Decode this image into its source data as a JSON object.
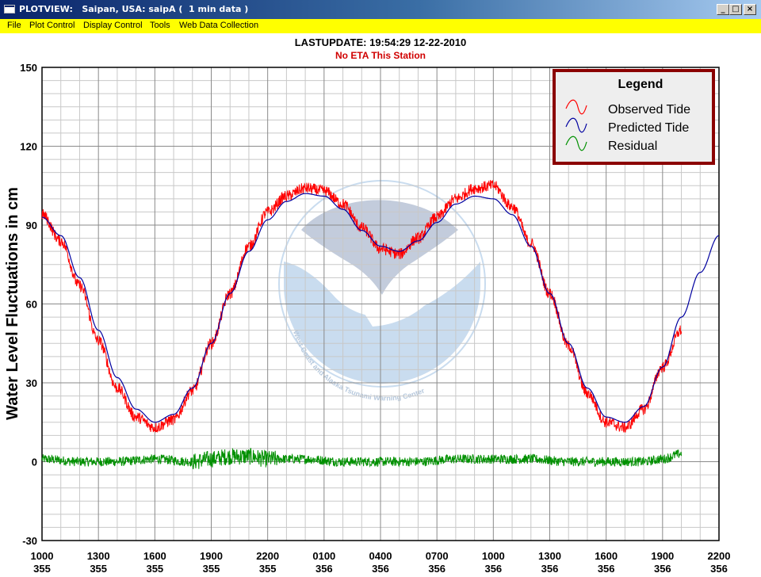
{
  "window": {
    "title": "PLOTVIEW:   Saipan, USA: saipA (  1 min data )",
    "buttons": [
      "_",
      "□",
      "×"
    ]
  },
  "menu": [
    "File",
    "Plot Control",
    "Display Control",
    "Tools",
    "Web Data Collection"
  ],
  "header": {
    "last_update": "LASTUPDATE: 19:54:29  12-22-2010",
    "eta": "No ETA This Station"
  },
  "watermark_text": "West Coast and Alaska Tsunami Warning Center",
  "chart_data": {
    "type": "line",
    "ylabel": "Water Level Fluctuations in cm",
    "ylim": [
      -30,
      150
    ],
    "yticks": [
      -30,
      0,
      30,
      60,
      90,
      120,
      150
    ],
    "x_ticks": [
      {
        "time": "1000",
        "day": "355"
      },
      {
        "time": "1300",
        "day": "355"
      },
      {
        "time": "1600",
        "day": "355"
      },
      {
        "time": "1900",
        "day": "355"
      },
      {
        "time": "2200",
        "day": "355"
      },
      {
        "time": "0100",
        "day": "356"
      },
      {
        "time": "0400",
        "day": "356"
      },
      {
        "time": "0700",
        "day": "356"
      },
      {
        "time": "1000",
        "day": "356"
      },
      {
        "time": "1300",
        "day": "356"
      },
      {
        "time": "1600",
        "day": "356"
      },
      {
        "time": "1900",
        "day": "356"
      },
      {
        "time": "2200",
        "day": "356"
      }
    ],
    "grid": true,
    "legend": {
      "title": "Legend",
      "placement": "top-right",
      "entries": [
        {
          "name": "Observed Tide",
          "color": "#ff0000"
        },
        {
          "name": "Predicted Tide",
          "color": "#0000a0"
        },
        {
          "name": "Residual",
          "color": "#009000"
        }
      ]
    },
    "series": [
      {
        "name": "Predicted Tide",
        "color": "#0000a0",
        "x_unit": "hours since 1000 day 355",
        "points": [
          [
            0,
            93
          ],
          [
            1,
            86
          ],
          [
            2,
            70
          ],
          [
            3,
            50
          ],
          [
            4,
            32
          ],
          [
            5,
            20
          ],
          [
            6,
            15
          ],
          [
            7,
            18
          ],
          [
            8,
            28
          ],
          [
            9,
            45
          ],
          [
            10,
            64
          ],
          [
            11,
            80
          ],
          [
            12,
            92
          ],
          [
            13,
            99
          ],
          [
            14,
            102
          ],
          [
            15,
            101
          ],
          [
            16,
            96
          ],
          [
            17,
            88
          ],
          [
            18,
            82
          ],
          [
            19,
            80
          ],
          [
            20,
            84
          ],
          [
            21,
            91
          ],
          [
            22,
            98
          ],
          [
            23,
            101
          ],
          [
            24,
            100
          ],
          [
            25,
            94
          ],
          [
            26,
            82
          ],
          [
            27,
            64
          ],
          [
            28,
            45
          ],
          [
            29,
            28
          ],
          [
            30,
            17
          ],
          [
            31,
            15
          ],
          [
            32,
            21
          ],
          [
            33,
            36
          ],
          [
            34,
            55
          ],
          [
            35,
            72
          ],
          [
            36,
            86
          ]
        ]
      },
      {
        "name": "Observed Tide",
        "color": "#ff0000",
        "points": [
          [
            0,
            94
          ],
          [
            1,
            84
          ],
          [
            2,
            67
          ],
          [
            3,
            46
          ],
          [
            4,
            28
          ],
          [
            5,
            17
          ],
          [
            6,
            13
          ],
          [
            7,
            16
          ],
          [
            8,
            27
          ],
          [
            9,
            45
          ],
          [
            10,
            64
          ],
          [
            11,
            82
          ],
          [
            12,
            95
          ],
          [
            13,
            101
          ],
          [
            14,
            104
          ],
          [
            15,
            103
          ],
          [
            16,
            98
          ],
          [
            17,
            89
          ],
          [
            18,
            81
          ],
          [
            19,
            79
          ],
          [
            20,
            85
          ],
          [
            21,
            93
          ],
          [
            22,
            100
          ],
          [
            23,
            104
          ],
          [
            24,
            105
          ],
          [
            25,
            97
          ],
          [
            26,
            83
          ],
          [
            27,
            64
          ],
          [
            28,
            44
          ],
          [
            29,
            26
          ],
          [
            30,
            15
          ],
          [
            31,
            13
          ],
          [
            32,
            20
          ],
          [
            33,
            36
          ],
          [
            34,
            50
          ]
        ]
      },
      {
        "name": "Residual",
        "color": "#009000",
        "points": [
          [
            0,
            1
          ],
          [
            2,
            0
          ],
          [
            4,
            0
          ],
          [
            6,
            1
          ],
          [
            8,
            0
          ],
          [
            9,
            1
          ],
          [
            10,
            2
          ],
          [
            11,
            2
          ],
          [
            12,
            1
          ],
          [
            13,
            1
          ],
          [
            14,
            1
          ],
          [
            16,
            0
          ],
          [
            18,
            0
          ],
          [
            20,
            0
          ],
          [
            22,
            1
          ],
          [
            24,
            1
          ],
          [
            26,
            1
          ],
          [
            28,
            0
          ],
          [
            30,
            0
          ],
          [
            32,
            0
          ],
          [
            33,
            1
          ],
          [
            34,
            3
          ]
        ]
      }
    ]
  }
}
